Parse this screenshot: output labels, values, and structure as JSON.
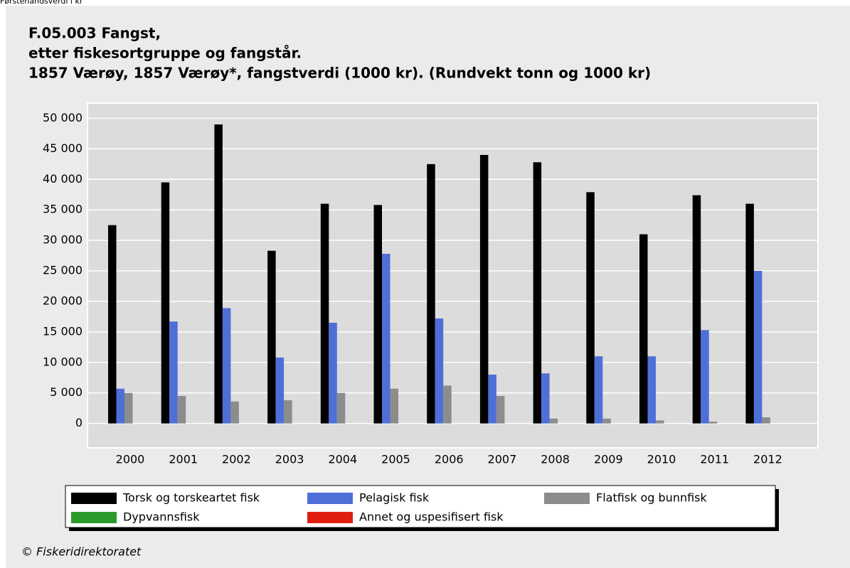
{
  "top_label": "Førstehåndsverdi i kr",
  "footer": "© Fiskeridirektoratet",
  "chart_data": {
    "type": "bar",
    "title": [
      "F.05.003 Fangst,",
      "etter fiskesortgruppe og fangstår.",
      "1857 Værøy, 1857 Værøy*, fangstverdi (1000 kr). (Rundvekt tonn og 1000 kr)"
    ],
    "categories": [
      "2000",
      "2001",
      "2002",
      "2003",
      "2004",
      "2005",
      "2006",
      "2007",
      "2008",
      "2009",
      "2010",
      "2011",
      "2012"
    ],
    "series": [
      {
        "name": "Torsk og torskeartet fisk",
        "color": "#000000",
        "values": [
          32500,
          39500,
          49000,
          28300,
          36000,
          35800,
          42500,
          44000,
          42800,
          37900,
          31000,
          37400,
          36000
        ]
      },
      {
        "name": "Pelagisk fisk",
        "color": "#4f6fd8",
        "values": [
          5700,
          16700,
          18900,
          10800,
          16500,
          27800,
          17200,
          8000,
          8200,
          11000,
          11000,
          15300,
          25000
        ]
      },
      {
        "name": "Flatfisk og bunnfisk",
        "color": "#8c8c8c",
        "values": [
          5000,
          4500,
          3600,
          3800,
          5000,
          5700,
          6200,
          4500,
          800,
          800,
          500,
          300,
          1000
        ]
      },
      {
        "name": "Dypvannsfisk",
        "color": "#2a9a2a",
        "values": [
          0,
          0,
          0,
          0,
          0,
          0,
          0,
          0,
          0,
          0,
          0,
          0,
          0
        ]
      },
      {
        "name": "Annet og uspesifisert fisk",
        "color": "#e0200f",
        "values": [
          0,
          0,
          0,
          0,
          0,
          0,
          0,
          0,
          0,
          0,
          0,
          0,
          0
        ]
      }
    ],
    "ylim": [
      -4000,
      52500
    ],
    "yticks": [
      0,
      {
        "value": 5000,
        "label": "5 000"
      },
      {
        "value": 10000,
        "label": "10 000"
      },
      {
        "value": 15000,
        "label": "15 000"
      },
      {
        "value": 20000,
        "label": "20 000"
      },
      {
        "value": 25000,
        "label": "25 000"
      },
      {
        "value": 30000,
        "label": "30 000"
      },
      {
        "value": 35000,
        "label": "35 000"
      },
      {
        "value": 40000,
        "label": "40 000"
      },
      {
        "value": 45000,
        "label": "45 000"
      },
      {
        "value": 50000,
        "label": "50 000"
      }
    ],
    "grid": true,
    "legend": "bottom"
  }
}
